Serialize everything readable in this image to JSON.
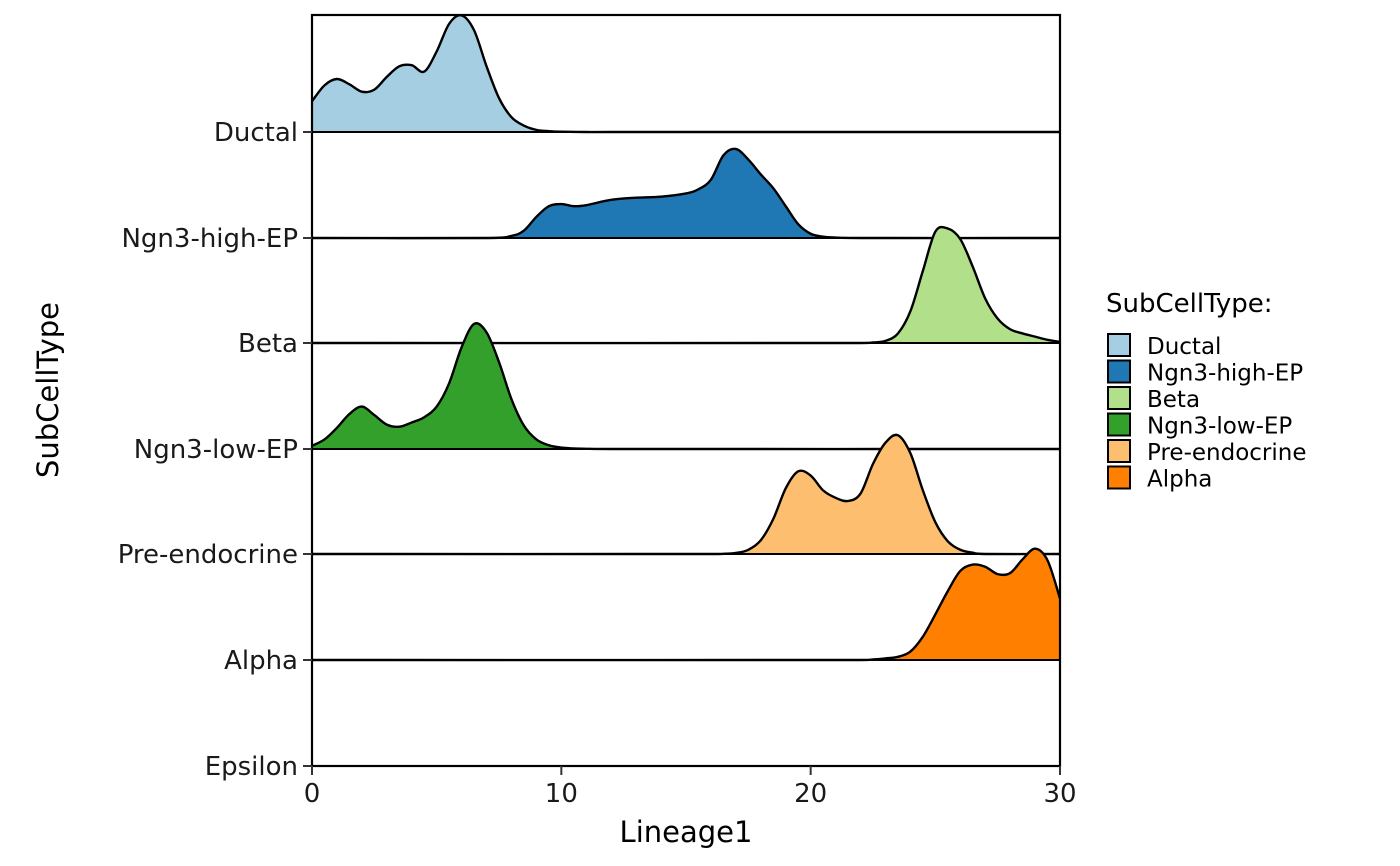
{
  "chart_data": {
    "type": "ridgeline",
    "xlabel": "Lineage1",
    "ylabel": "SubCellType",
    "xlim": [
      0,
      30
    ],
    "x_ticks": [
      0,
      10,
      20,
      30
    ],
    "y_categories": [
      "Epsilon",
      "Alpha",
      "Pre-endocrine",
      "Ngn3-low-EP",
      "Beta",
      "Ngn3-high-EP",
      "Ductal"
    ],
    "legend": {
      "title": "SubCellType:",
      "placement": "right",
      "items": [
        {
          "label": "Ductal",
          "color": "#A6CEE3"
        },
        {
          "label": "Ngn3-high-EP",
          "color": "#1F78B4"
        },
        {
          "label": "Beta",
          "color": "#B2DF8A"
        },
        {
          "label": "Ngn3-low-EP",
          "color": "#33A02C"
        },
        {
          "label": "Pre-endocrine",
          "color": "#FDBF6F"
        },
        {
          "label": "Alpha",
          "color": "#FF7F00"
        }
      ]
    },
    "series": [
      {
        "name": "Ductal",
        "color": "#A6CEE3",
        "x": [
          0,
          0.5,
          1,
          1.5,
          2,
          2.5,
          3,
          3.5,
          4,
          4.5,
          5,
          5.5,
          6,
          6.5,
          7,
          7.5,
          8,
          8.5,
          9,
          9.5,
          10,
          11,
          12,
          30
        ],
        "y": [
          0.29,
          0.44,
          0.5,
          0.45,
          0.38,
          0.4,
          0.52,
          0.62,
          0.63,
          0.57,
          0.76,
          1.02,
          1.1,
          0.96,
          0.62,
          0.32,
          0.14,
          0.06,
          0.02,
          0.008,
          0.003,
          0,
          0,
          0
        ]
      },
      {
        "name": "Ngn3-high-EP",
        "color": "#1F78B4",
        "x": [
          0,
          7,
          8,
          8.5,
          9,
          9.5,
          10,
          10.5,
          11,
          12,
          13,
          14,
          15,
          15.5,
          16,
          16.5,
          17,
          17.5,
          18,
          18.5,
          19,
          19.5,
          20,
          20.5,
          21,
          22,
          30
        ],
        "y": [
          0,
          0,
          0.02,
          0.07,
          0.2,
          0.3,
          0.32,
          0.3,
          0.31,
          0.36,
          0.38,
          0.39,
          0.42,
          0.46,
          0.55,
          0.78,
          0.84,
          0.74,
          0.6,
          0.47,
          0.3,
          0.13,
          0.04,
          0.012,
          0.004,
          0,
          0
        ]
      },
      {
        "name": "Beta",
        "color": "#B2DF8A",
        "x": [
          0,
          22,
          22.5,
          23,
          23.5,
          24,
          24.5,
          25,
          25.5,
          26,
          26.5,
          27,
          27.5,
          28,
          28.5,
          29,
          29.5,
          30
        ],
        "y": [
          0,
          0,
          0.005,
          0.02,
          0.09,
          0.3,
          0.68,
          1.05,
          1.08,
          0.98,
          0.72,
          0.42,
          0.23,
          0.13,
          0.09,
          0.06,
          0.03,
          0.01
        ]
      },
      {
        "name": "Ngn3-low-EP",
        "color": "#33A02C",
        "x": [
          0,
          0.5,
          1,
          1.5,
          2,
          2.5,
          3,
          3.5,
          4,
          4.5,
          5,
          5.5,
          6,
          6.5,
          7,
          7.5,
          8,
          8.5,
          9,
          9.5,
          10,
          10.5,
          11,
          12,
          30
        ],
        "y": [
          0.03,
          0.09,
          0.2,
          0.33,
          0.4,
          0.32,
          0.23,
          0.21,
          0.25,
          0.3,
          0.4,
          0.62,
          0.96,
          1.18,
          1.1,
          0.82,
          0.47,
          0.22,
          0.09,
          0.035,
          0.013,
          0.005,
          0.002,
          0,
          0
        ]
      },
      {
        "name": "Pre-endocrine",
        "color": "#FDBF6F",
        "x": [
          0,
          16,
          16.5,
          17,
          17.5,
          18,
          18.5,
          19,
          19.5,
          20,
          20.5,
          21,
          21.5,
          22,
          22.5,
          23,
          23.5,
          24,
          24.5,
          25,
          25.5,
          26,
          26.5,
          27,
          30
        ],
        "y": [
          0,
          0,
          0.002,
          0.01,
          0.04,
          0.13,
          0.33,
          0.62,
          0.78,
          0.74,
          0.6,
          0.53,
          0.5,
          0.57,
          0.85,
          1.05,
          1.12,
          0.95,
          0.6,
          0.3,
          0.12,
          0.04,
          0.012,
          0,
          0
        ]
      },
      {
        "name": "Alpha",
        "color": "#FF7F00",
        "x": [
          0,
          22,
          22.5,
          23,
          23.5,
          24,
          24.5,
          25,
          25.5,
          26,
          26.5,
          27,
          27.5,
          28,
          28.5,
          29,
          29.5,
          30
        ],
        "y": [
          0,
          0,
          0.005,
          0.015,
          0.03,
          0.08,
          0.22,
          0.43,
          0.65,
          0.84,
          0.9,
          0.88,
          0.81,
          0.82,
          0.95,
          1.05,
          0.94,
          0.58
        ]
      }
    ]
  }
}
